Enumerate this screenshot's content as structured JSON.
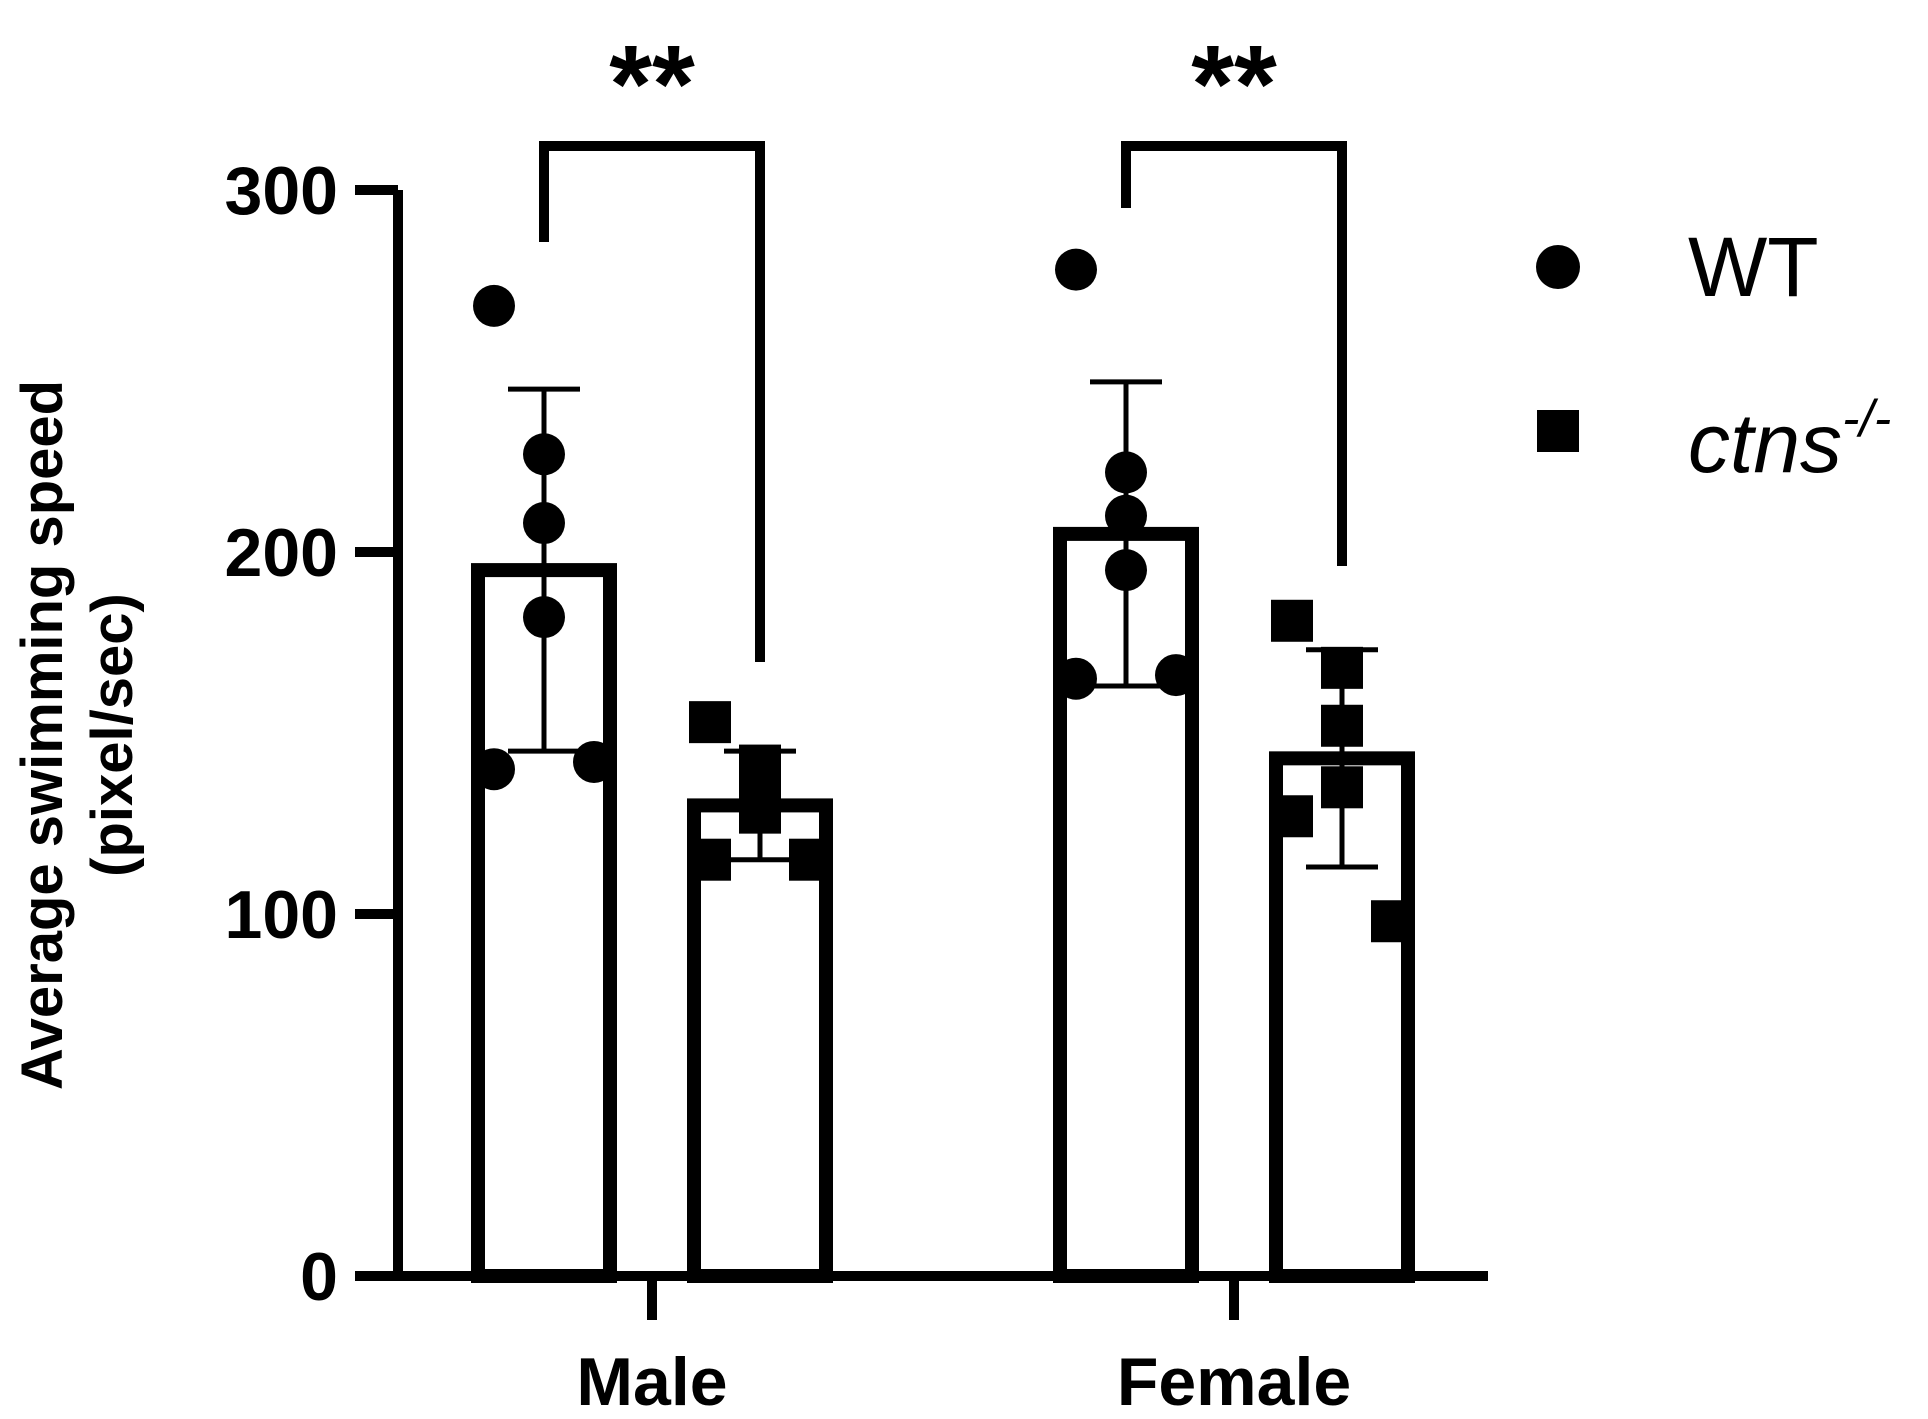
{
  "chart_data": {
    "type": "bar",
    "categories": [
      "Male",
      "Female"
    ],
    "ylabel_line1": "Average swimming speed",
    "ylabel_line2": "(pixel/sec)",
    "ylim": [
      0,
      300
    ],
    "yticks": [
      0,
      100,
      200,
      300
    ],
    "ytick_labels": [
      "0",
      "100",
      "200",
      "300"
    ],
    "series": [
      {
        "name": "WT",
        "marker": "circle",
        "means": [
          195,
          205
        ],
        "sd": [
          50,
          42
        ],
        "points": [
          [
            268,
            227,
            208,
            182,
            140,
            142
          ],
          [
            278,
            222,
            210,
            195,
            165,
            166
          ]
        ]
      },
      {
        "name": "ctns",
        "name_superscript": "-/-",
        "marker": "square",
        "means": [
          130,
          143
        ],
        "sd": [
          15,
          30
        ],
        "points": [
          [
            153,
            141,
            128,
            132,
            115,
            115
          ],
          [
            181,
            168,
            152,
            135,
            127,
            98
          ]
        ]
      }
    ],
    "significance": [
      {
        "category": "Male",
        "label": "**"
      },
      {
        "category": "Female",
        "label": "**"
      }
    ],
    "legend_position": "right",
    "colors": {
      "ink": "#000000",
      "bar_fill": "#ffffff"
    }
  }
}
